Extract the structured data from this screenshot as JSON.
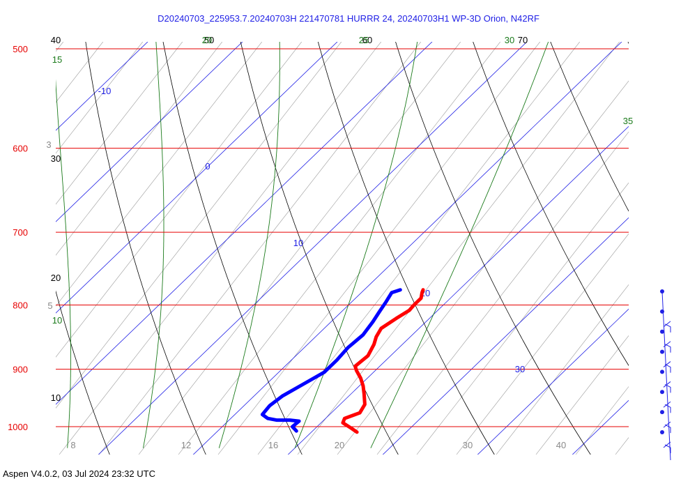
{
  "chart_data": {
    "type": "skew-t",
    "title": "D20240703_225953.7.20240703H 221470781 HURRR 24, 20240703H1 WP-3D Orion, N42RF",
    "pressure_levels": [
      {
        "p": 500,
        "label": "500"
      },
      {
        "p": 600,
        "label": "600"
      },
      {
        "p": 700,
        "label": "700"
      },
      {
        "p": 800,
        "label": "800"
      },
      {
        "p": 900,
        "label": "900"
      },
      {
        "p": 1000,
        "label": "1000"
      }
    ],
    "isotherms": [
      -10,
      0,
      10,
      20,
      30
    ],
    "isotherm_labels": [
      "-10",
      "0",
      "10",
      "20",
      "30"
    ],
    "potential_temperature": [
      10,
      20,
      30,
      40,
      50,
      60,
      70
    ],
    "potential_temperature_labels": [
      "10",
      "20",
      "30",
      "40",
      "50",
      "60",
      "70"
    ],
    "moist_adiabats": [
      10,
      15,
      20,
      25,
      30,
      35
    ],
    "moist_adiabat_labels": [
      "10",
      "15",
      "20",
      "25",
      "30",
      "35"
    ],
    "mixing_ratio": [
      3,
      5,
      8,
      12,
      16,
      20,
      30,
      40
    ],
    "mixing_ratio_labels": [
      "3",
      "5",
      "8",
      "12",
      "16",
      "20",
      "30",
      "40"
    ],
    "temperature_profile": [
      {
        "p": 778,
        "t": 16.2
      },
      {
        "p": 782,
        "t": 16.4
      },
      {
        "p": 790,
        "t": 16.9
      },
      {
        "p": 800,
        "t": 16.9
      },
      {
        "p": 808,
        "t": 17.0
      },
      {
        "p": 820,
        "t": 16.5
      },
      {
        "p": 835,
        "t": 16.0
      },
      {
        "p": 848,
        "t": 16.4
      },
      {
        "p": 860,
        "t": 17.0
      },
      {
        "p": 878,
        "t": 17.6
      },
      {
        "p": 895,
        "t": 17.4
      },
      {
        "p": 902,
        "t": 18.0
      },
      {
        "p": 915,
        "t": 19.3
      },
      {
        "p": 928,
        "t": 20.4
      },
      {
        "p": 942,
        "t": 21.4
      },
      {
        "p": 960,
        "t": 22.6
      },
      {
        "p": 975,
        "t": 23.0
      },
      {
        "p": 985,
        "t": 22.0
      },
      {
        "p": 993,
        "t": 22.3
      },
      {
        "p": 1003,
        "t": 23.8
      },
      {
        "p": 1010,
        "t": 24.8
      }
    ],
    "dewpoint_profile": [
      {
        "p": 778,
        "t": 13.8
      },
      {
        "p": 782,
        "t": 13.2
      },
      {
        "p": 795,
        "t": 13.6
      },
      {
        "p": 810,
        "t": 14.0
      },
      {
        "p": 825,
        "t": 14.4
      },
      {
        "p": 845,
        "t": 14.8
      },
      {
        "p": 865,
        "t": 14.6
      },
      {
        "p": 885,
        "t": 14.8
      },
      {
        "p": 905,
        "t": 14.8
      },
      {
        "p": 925,
        "t": 13.9
      },
      {
        "p": 945,
        "t": 13.0
      },
      {
        "p": 962,
        "t": 12.7
      },
      {
        "p": 978,
        "t": 12.9
      },
      {
        "p": 985,
        "t": 13.9
      },
      {
        "p": 988,
        "t": 15.0
      },
      {
        "p": 988,
        "t": 16.4
      },
      {
        "p": 990,
        "t": 17.5
      },
      {
        "p": 1000,
        "t": 17.4
      },
      {
        "p": 1008,
        "t": 18.3
      }
    ],
    "wind_barb_count": 8,
    "colors": {
      "isobar": "#e60000",
      "isotherm": "#2020e6",
      "dry_adiabat": "#000000",
      "moist_adiabat": "#1a7a1a",
      "mixing_ratio": "#9a9a9a",
      "temperature": "#ff0000",
      "dewpoint": "#0000ff",
      "title": "#2020e6"
    }
  },
  "footer": "Aspen V4.0.2, 03 Jul 2024  23:32 UTC"
}
